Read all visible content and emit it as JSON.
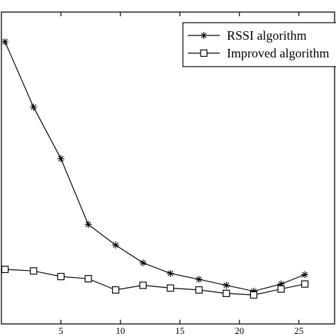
{
  "chart_data": {
    "type": "line",
    "x_ticks": [
      "5",
      "10",
      "15",
      "20",
      "25"
    ],
    "xlim": [
      0,
      28
    ],
    "ylim": [
      0,
      1
    ],
    "grid": false,
    "legend_position": "top-right",
    "series": [
      {
        "name": "RSSI algorithm",
        "marker": "star",
        "color": "#000000",
        "points": [
          {
            "x": 0.3,
            "y": 0.905
          },
          {
            "x": 2.7,
            "y": 0.695
          },
          {
            "x": 5.0,
            "y": 0.53
          },
          {
            "x": 7.3,
            "y": 0.319
          },
          {
            "x": 9.6,
            "y": 0.253
          },
          {
            "x": 11.9,
            "y": 0.196
          },
          {
            "x": 14.2,
            "y": 0.162
          },
          {
            "x": 16.6,
            "y": 0.143
          },
          {
            "x": 18.9,
            "y": 0.124
          },
          {
            "x": 21.2,
            "y": 0.105
          },
          {
            "x": 23.5,
            "y": 0.128
          },
          {
            "x": 25.5,
            "y": 0.158
          }
        ]
      },
      {
        "name": "Improved algorithm",
        "marker": "square",
        "color": "#000000",
        "points": [
          {
            "x": 0.3,
            "y": 0.175
          },
          {
            "x": 2.7,
            "y": 0.17
          },
          {
            "x": 5.0,
            "y": 0.152
          },
          {
            "x": 7.3,
            "y": 0.145
          },
          {
            "x": 9.6,
            "y": 0.109
          },
          {
            "x": 11.9,
            "y": 0.124
          },
          {
            "x": 14.2,
            "y": 0.115
          },
          {
            "x": 16.6,
            "y": 0.109
          },
          {
            "x": 18.9,
            "y": 0.098
          },
          {
            "x": 21.2,
            "y": 0.093
          },
          {
            "x": 23.5,
            "y": 0.112
          },
          {
            "x": 25.5,
            "y": 0.128
          }
        ]
      }
    ]
  },
  "legend": {
    "items": [
      {
        "label": "RSSI algorithm",
        "marker": "star"
      },
      {
        "label": "Improved algorithm",
        "marker": "square"
      }
    ]
  }
}
